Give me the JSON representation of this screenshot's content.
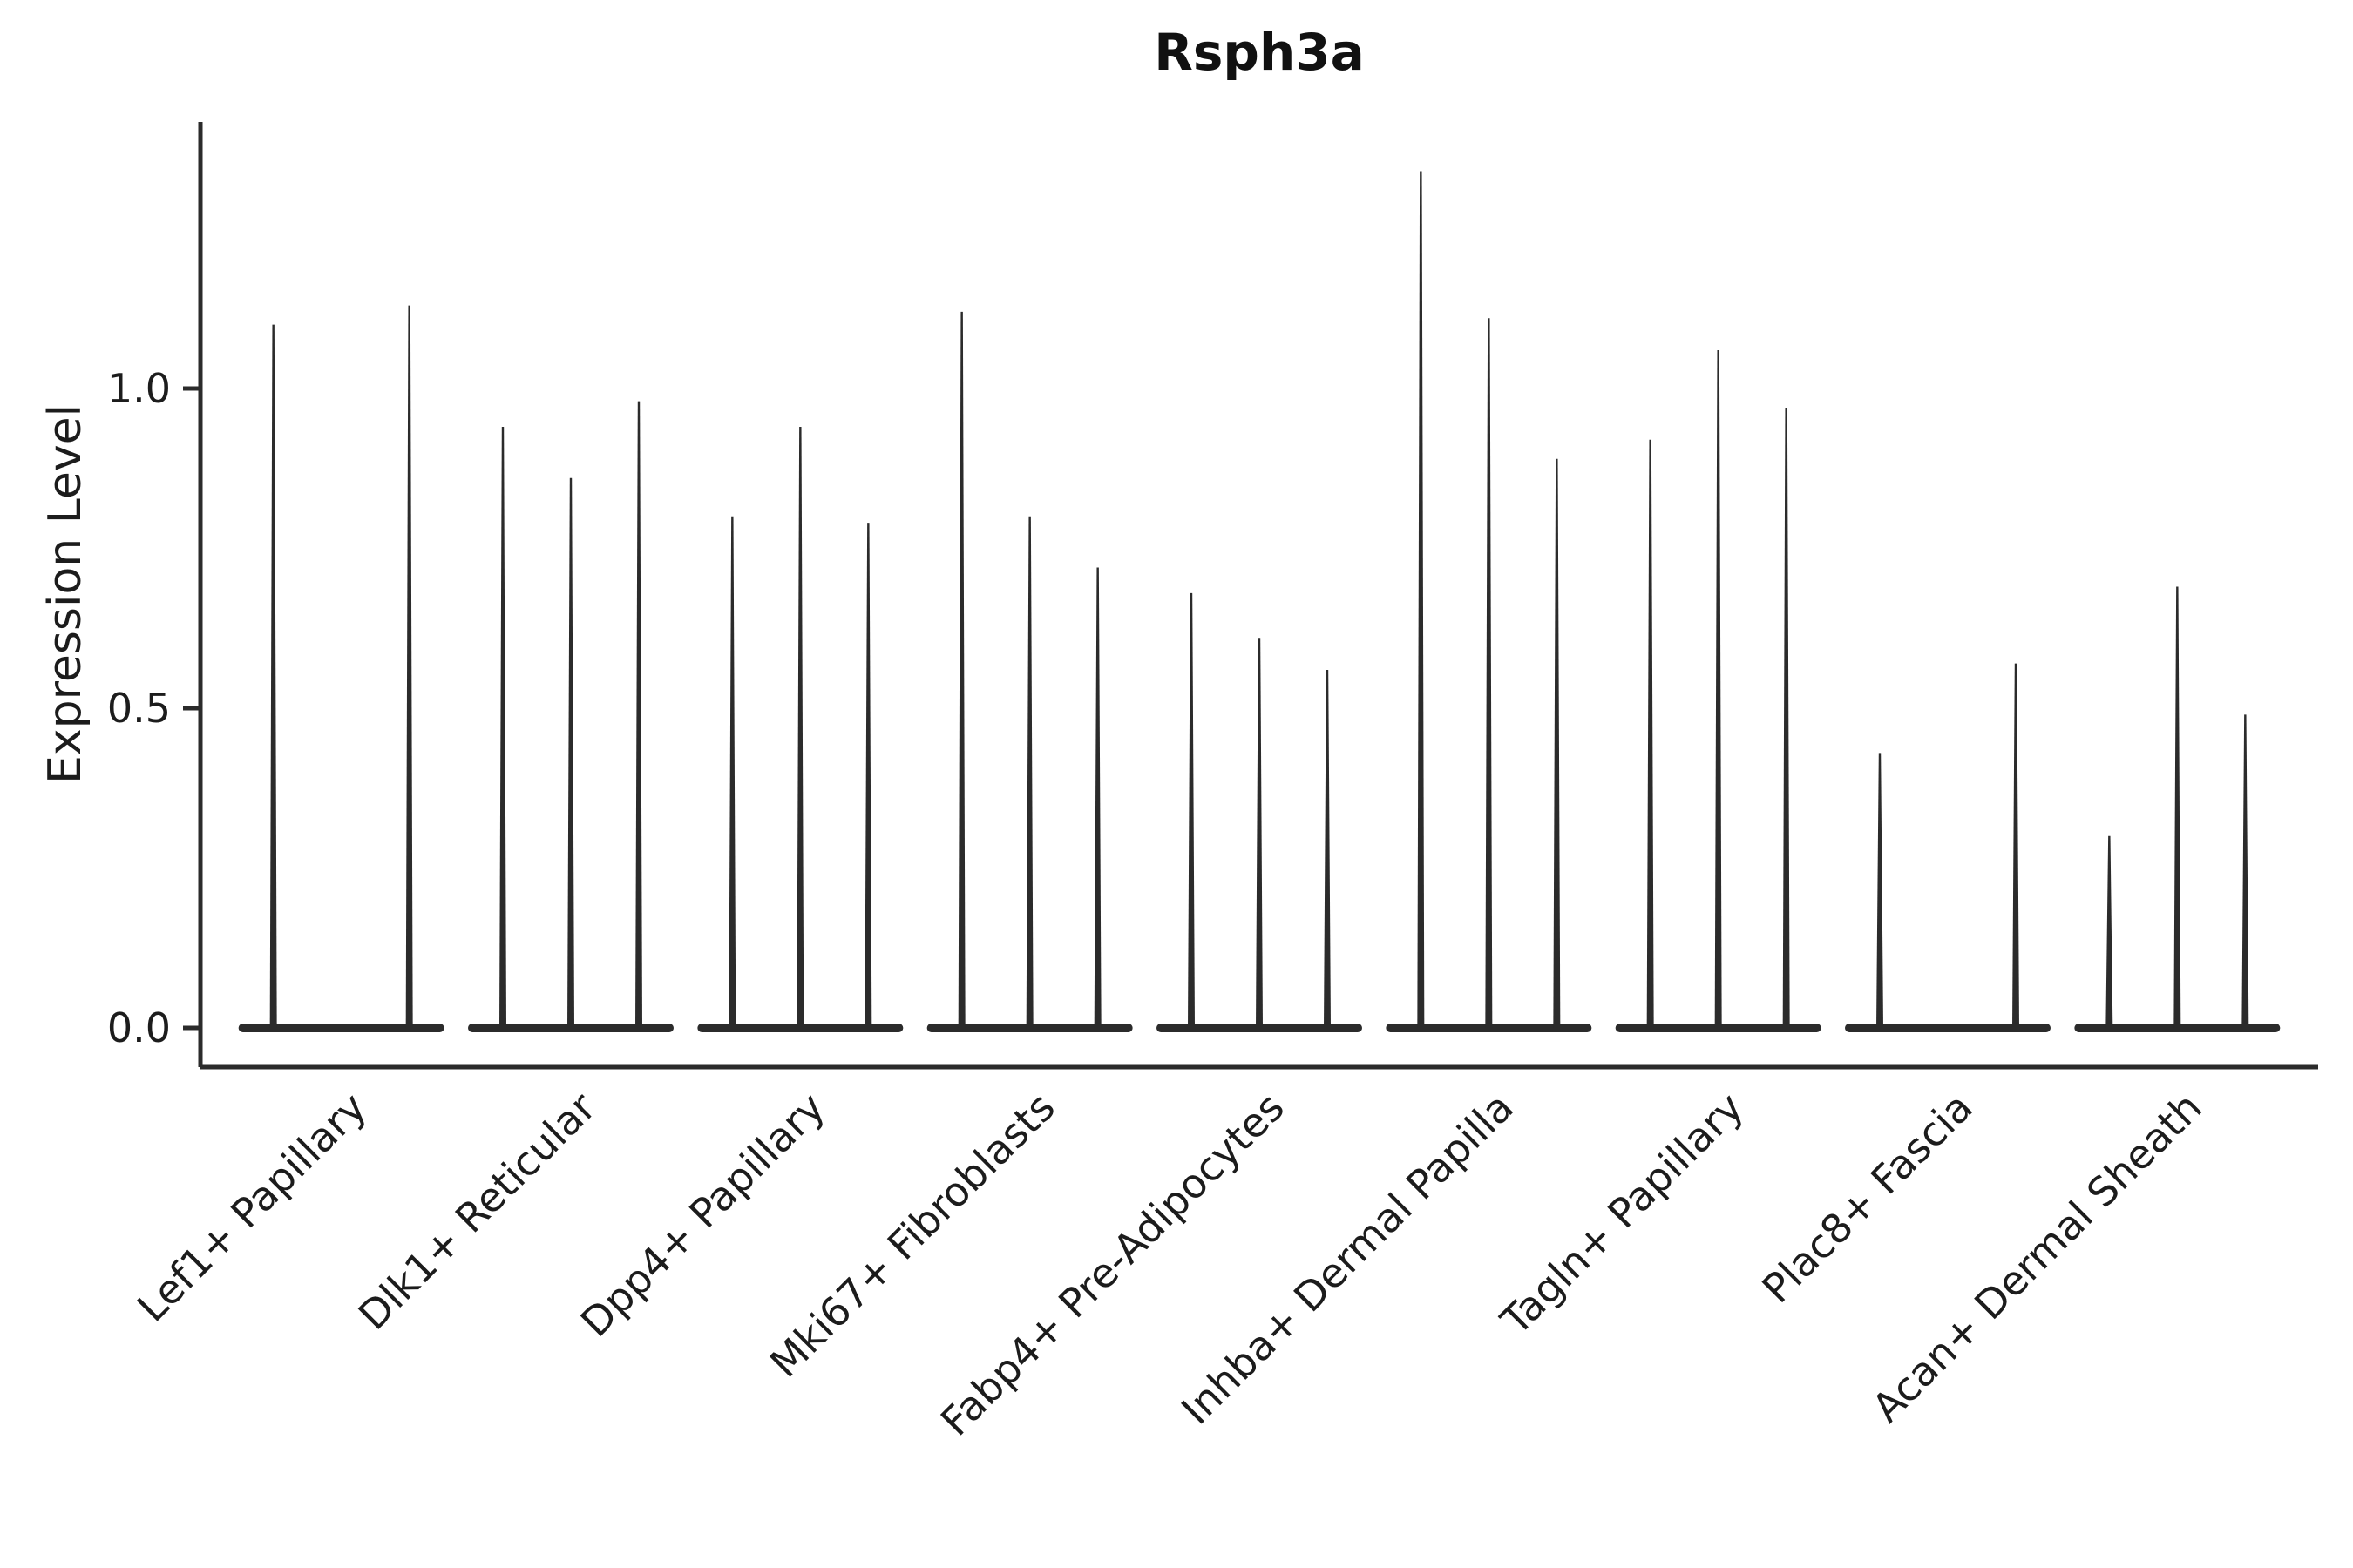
{
  "chart_data": {
    "type": "violin",
    "title": "Rsph3a",
    "ylabel": "Expression Level",
    "xlabel": "",
    "ylim": [
      -0.06,
      1.42
    ],
    "yticks": [
      0.0,
      0.5,
      1.0
    ],
    "ytick_labels": [
      "0.0",
      "0.5",
      "1.0"
    ],
    "grid": false,
    "legend": "none",
    "violins_per_category": 3,
    "description": "Single-cell expression violin plot; each category shows 3 very thin violins with a flat dense base at 0 expression and a narrow spike whose top equals the max expression level.",
    "categories": [
      "Lef1+ Papillary",
      "Dlk1+ Reticular",
      "Dpp4+ Papillary",
      "Mki67+ Fibroblasts",
      "Fabp4+ Pre-Adipocytes",
      "Inhba+ Dermal Papilla",
      "Tagln+ Papillary",
      "Plac8+ Fascia",
      "Acan+ Dermal Sheath"
    ],
    "series": [
      {
        "category": "Lef1+ Papillary",
        "spike_heights": [
          1.1,
          0.0,
          1.13
        ]
      },
      {
        "category": "Dlk1+ Reticular",
        "spike_heights": [
          0.94,
          0.86,
          0.98
        ]
      },
      {
        "category": "Dpp4+ Papillary",
        "spike_heights": [
          0.8,
          0.94,
          0.79
        ]
      },
      {
        "category": "Mki67+ Fibroblasts",
        "spike_heights": [
          1.12,
          0.8,
          0.72
        ]
      },
      {
        "category": "Fabp4+ Pre-Adipocytes",
        "spike_heights": [
          0.68,
          0.61,
          0.56
        ]
      },
      {
        "category": "Inhba+ Dermal Papilla",
        "spike_heights": [
          1.34,
          1.11,
          0.89
        ]
      },
      {
        "category": "Tagln+ Papillary",
        "spike_heights": [
          0.92,
          1.06,
          0.97
        ]
      },
      {
        "category": "Plac8+ Fascia",
        "spike_heights": [
          0.43,
          0.0,
          0.57
        ]
      },
      {
        "category": "Acan+ Dermal Sheath",
        "spike_heights": [
          0.3,
          0.69,
          0.49
        ]
      }
    ],
    "colors": {
      "ink": "#2b2b2b",
      "text": "#1c1c1c",
      "background": "#ffffff"
    }
  }
}
